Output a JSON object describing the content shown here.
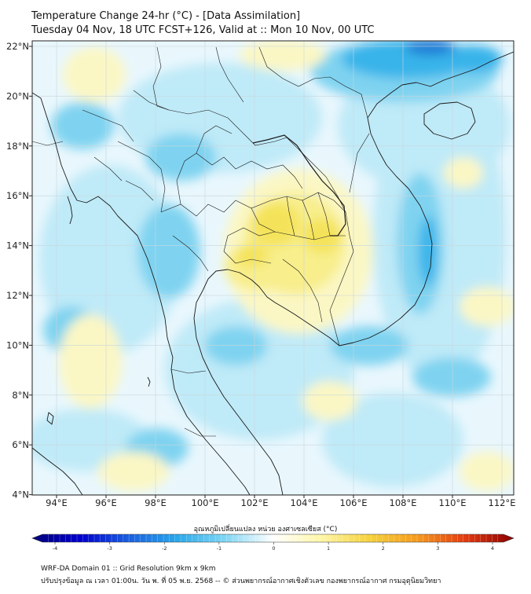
{
  "header": {
    "title_line1": "Temperature Change 24-hr (°C) - [Data Assimilation]",
    "title_line2": "Tuesday 04 Nov, 18 UTC FCST+126, Valid at :: Mon 10 Nov, 00 UTC"
  },
  "map": {
    "lon_ticks": [
      "94°E",
      "96°E",
      "98°E",
      "100°E",
      "102°E",
      "104°E",
      "106°E",
      "108°E",
      "110°E",
      "112°E"
    ],
    "lat_ticks": [
      "22°N",
      "20°N",
      "18°N",
      "16°N",
      "14°N",
      "12°N",
      "10°N",
      "8°N",
      "6°N",
      "4°N"
    ],
    "colors": {
      "background": "#e9f7fd",
      "warm_light": "#fbf7c4",
      "warm": "#f8ee8c",
      "warm_strong": "#f4e35a",
      "cool_light": "#bfeaf8",
      "cool": "#7fd3f0",
      "cool_strong": "#38b4ea",
      "cold": "#1e78d4",
      "coastline": "#1a1a1a",
      "gridline": "#c8d6dc"
    }
  },
  "colorbar": {
    "title": "อุณหภูมิเปลี่ยนแปลง หน่วย องศาเซลเซียส (°C)",
    "ticks": [
      "-4",
      "-3",
      "-2",
      "-1",
      "0",
      "1",
      "2",
      "3",
      "4"
    ],
    "stops": [
      "#00007a",
      "#0000cd",
      "#1a5fe0",
      "#2aa8ea",
      "#7fd6f4",
      "#ffffff",
      "#fff6a8",
      "#f5d23c",
      "#f59a1e",
      "#e23b10",
      "#8b0000"
    ]
  },
  "footer": {
    "line1": "WRF-DA Domain 01 :: Grid Resolution 9km x 9km",
    "line2": "ปรับปรุงข้อมูล ณ เวลา 01:00น. วัน พ. ที่ 05 พ.ย. 2568 -- © ส่วนพยากรณ์อากาศเชิงตัวเลข กองพยากรณ์อากาศ กรมอุตุนิยมวิทยา"
  }
}
